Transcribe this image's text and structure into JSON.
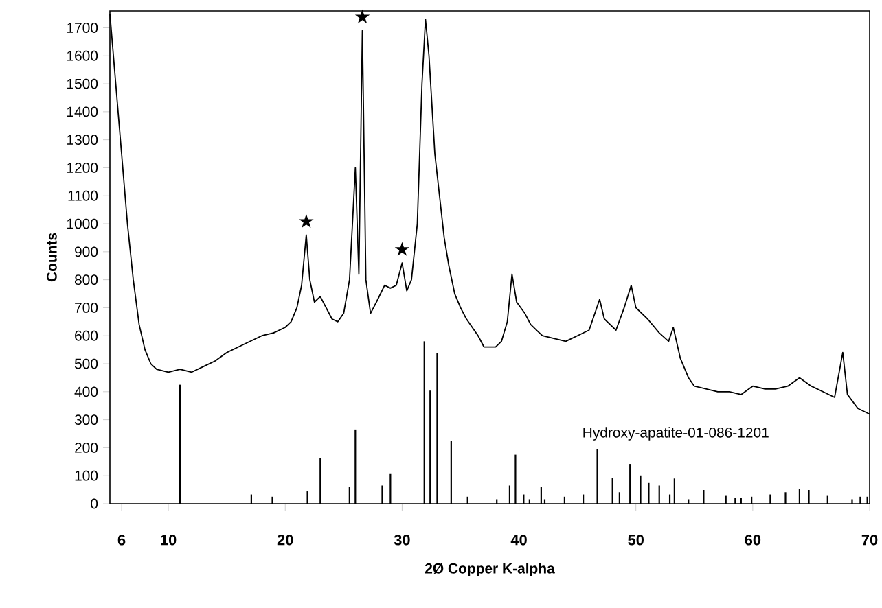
{
  "chart_data": {
    "type": "line",
    "xlabel": "2Ø Copper K-alpha",
    "ylabel": "Counts",
    "xlim": [
      5,
      70
    ],
    "ylim": [
      0,
      1760
    ],
    "xticks": [
      6,
      10,
      20,
      30,
      40,
      50,
      60,
      70
    ],
    "yticks": [
      0,
      100,
      200,
      300,
      400,
      500,
      600,
      700,
      800,
      900,
      1000,
      1100,
      1200,
      1300,
      1400,
      1500,
      1600,
      1700
    ],
    "series": [
      {
        "color": "#000000",
        "x": [
          5.0,
          5.5,
          6,
          6.5,
          7,
          7.5,
          8,
          8.5,
          9,
          10,
          11,
          12,
          13,
          14,
          15,
          16,
          17,
          18,
          19,
          20,
          20.5,
          21,
          21.4,
          21.8,
          22.1,
          22.5,
          23,
          23.5,
          24,
          24.5,
          25,
          25.5,
          26.0,
          26.3,
          26.6,
          26.9,
          27.3,
          27.8,
          28.5,
          29,
          29.5,
          30,
          30.4,
          30.8,
          31.3,
          31.7,
          32.0,
          32.3,
          32.8,
          33.2,
          33.6,
          34,
          34.5,
          35,
          35.5,
          36,
          36.5,
          37,
          37.5,
          38,
          38.5,
          39,
          39.4,
          39.8,
          40.5,
          41,
          41.5,
          42,
          43,
          44,
          45,
          46,
          46.9,
          47.3,
          47.8,
          48.3,
          49,
          49.6,
          50,
          51,
          52,
          52.8,
          53.2,
          53.8,
          54.5,
          55,
          56,
          57,
          58,
          59,
          60,
          61,
          62,
          63,
          64,
          65,
          66,
          67,
          67.7,
          68.1,
          69,
          70
        ],
        "values": [
          1750,
          1500,
          1250,
          1000,
          800,
          640,
          550,
          500,
          480,
          470,
          480,
          470,
          490,
          510,
          540,
          560,
          580,
          600,
          610,
          630,
          650,
          700,
          780,
          960,
          800,
          720,
          740,
          700,
          660,
          650,
          680,
          800,
          1200,
          820,
          1690,
          800,
          680,
          720,
          780,
          770,
          780,
          860,
          760,
          800,
          1000,
          1500,
          1730,
          1600,
          1250,
          1100,
          950,
          850,
          750,
          700,
          660,
          630,
          600,
          560,
          560,
          560,
          580,
          650,
          820,
          720,
          680,
          640,
          620,
          600,
          590,
          580,
          600,
          620,
          730,
          660,
          640,
          620,
          700,
          780,
          700,
          660,
          610,
          580,
          630,
          520,
          450,
          420,
          410,
          400,
          400,
          390,
          420,
          410,
          410,
          420,
          450,
          420,
          400,
          380,
          540,
          390,
          340,
          320
        ]
      },
      {
        "type": "bar",
        "name": "Hydroxy-apatite-01-086-1201",
        "color": "#000000",
        "x": [
          11.0,
          17.1,
          18.9,
          21.9,
          23.0,
          25.5,
          26.0,
          28.3,
          29.0,
          31.9,
          32.4,
          33.0,
          34.2,
          35.6,
          38.1,
          39.2,
          39.7,
          40.4,
          40.9,
          41.9,
          42.2,
          43.9,
          45.5,
          46.7,
          48.0,
          48.6,
          49.5,
          50.4,
          51.1,
          52.0,
          52.9,
          53.3,
          54.5,
          55.8,
          57.7,
          58.5,
          59.0,
          59.9,
          61.5,
          62.8,
          64.0,
          64.8,
          66.4,
          68.5,
          69.2,
          69.8
        ],
        "values": [
          425,
          33,
          25,
          44,
          163,
          60,
          265,
          65,
          106,
          580,
          404,
          539,
          225,
          25,
          16,
          65,
          175,
          33,
          16,
          60,
          16,
          25,
          33,
          196,
          93,
          41,
          142,
          101,
          74,
          65,
          33,
          90,
          16,
          49,
          28,
          20,
          20,
          25,
          33,
          41,
          54,
          49,
          28,
          16,
          25,
          25
        ]
      }
    ],
    "annotations": [
      {
        "text": "★",
        "x": 21.8,
        "y": 960
      },
      {
        "text": "★",
        "x": 26.6,
        "y": 1690
      },
      {
        "text": "★",
        "x": 30.0,
        "y": 860
      }
    ]
  }
}
